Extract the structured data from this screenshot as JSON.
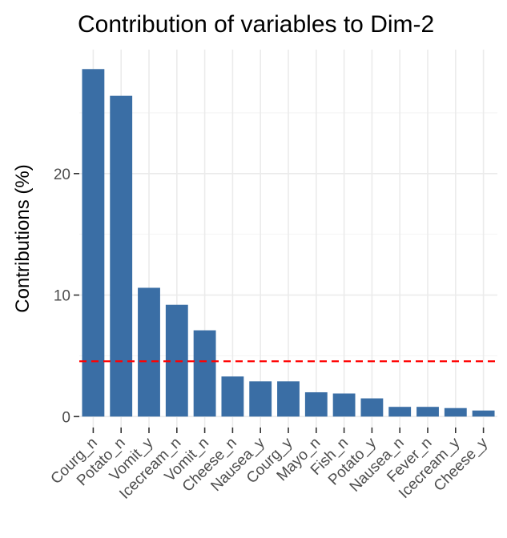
{
  "chart_data": {
    "type": "bar",
    "title": "Contribution of variables to Dim-2",
    "xlabel": "",
    "ylabel": "Contributions (%)",
    "categories": [
      "Courg_n",
      "Potato_n",
      "Vomit_y",
      "Icecream_n",
      "Vomit_n",
      "Cheese_n",
      "Nausea_y",
      "Courg_y",
      "Mayo_n",
      "Fish_n",
      "Potato_y",
      "Nausea_n",
      "Fever_n",
      "Icecream_y",
      "Cheese_y"
    ],
    "values": [
      28.6,
      26.4,
      10.6,
      9.2,
      7.1,
      3.3,
      2.9,
      2.9,
      2.0,
      1.9,
      1.5,
      0.8,
      0.8,
      0.7,
      0.5
    ],
    "yticks": [
      0,
      10,
      20
    ],
    "ylim": [
      -0.9,
      30.2
    ],
    "reference_line": {
      "value": 4.55,
      "color": "#ff0000",
      "style": "dashed"
    },
    "bar_color": "#3a6ea5",
    "grid": true,
    "legend": "none"
  }
}
